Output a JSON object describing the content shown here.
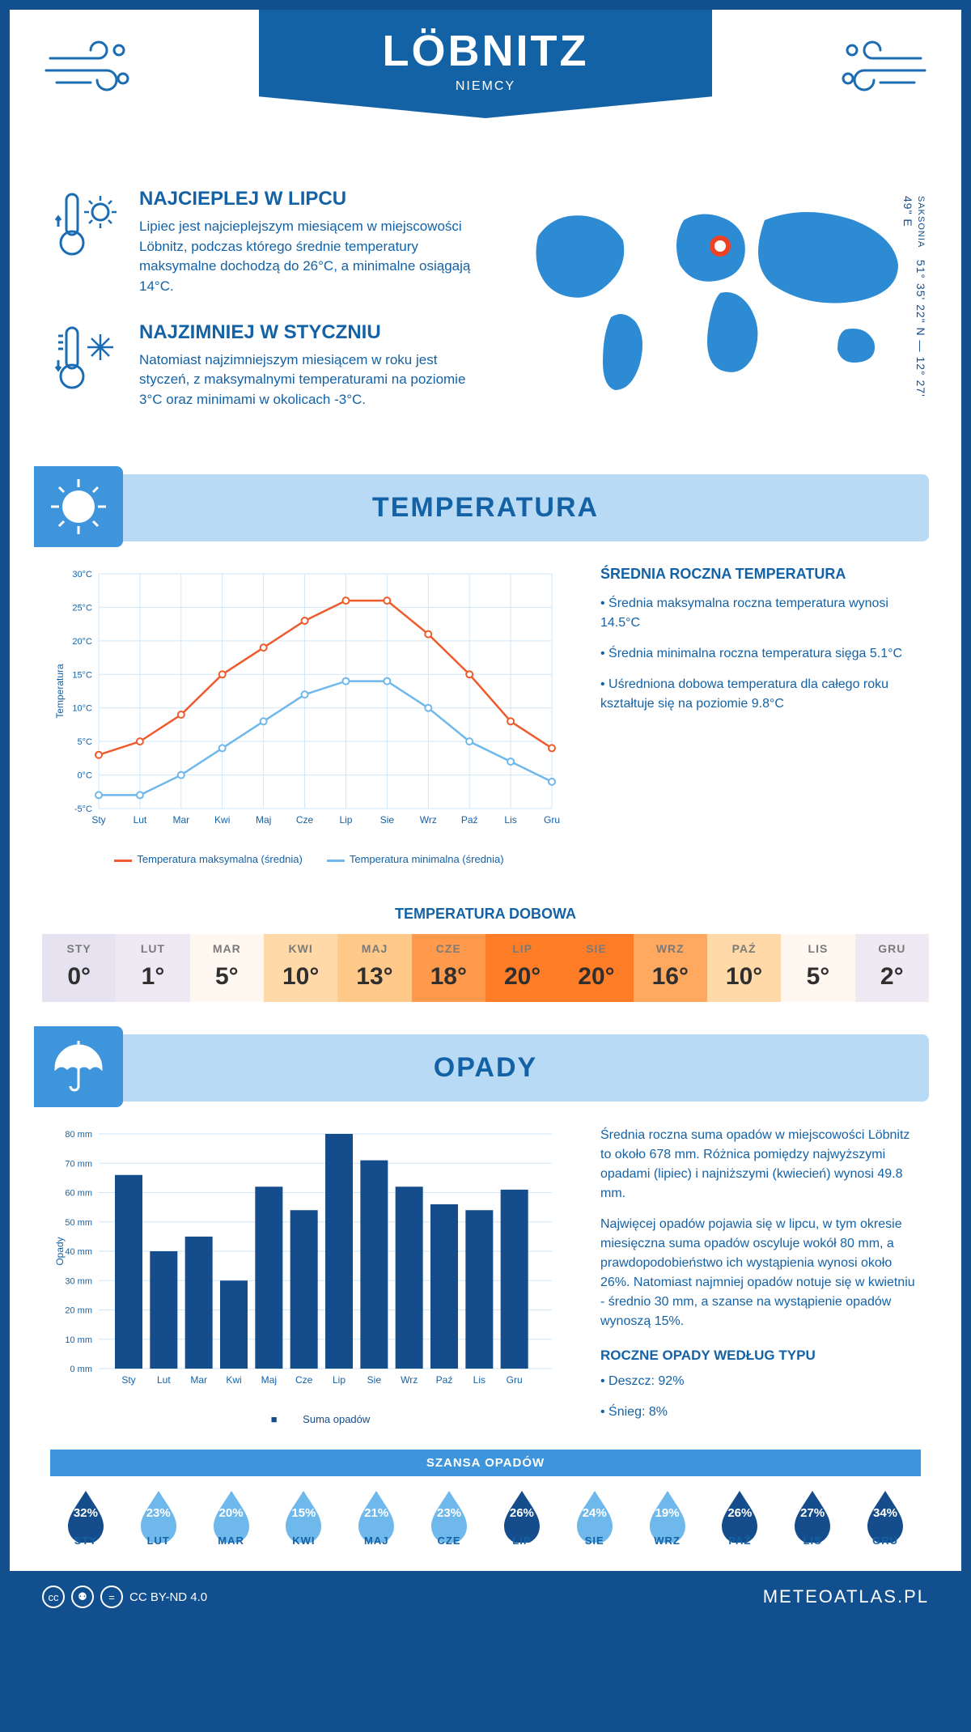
{
  "header": {
    "city": "LÖBNITZ",
    "country": "NIEMCY",
    "coords": "51° 35' 22\" N — 12° 27' 49\" E",
    "region": "SAKSONIA"
  },
  "facts": {
    "hot": {
      "title": "NAJCIEPLEJ W LIPCU",
      "text": "Lipiec jest najcieplejszym miesiącem w miejscowości Löbnitz, podczas którego średnie temperatury maksymalne dochodzą do 26°C, a minimalne osiągają 14°C."
    },
    "cold": {
      "title": "NAJZIMNIEJ W STYCZNIU",
      "text": "Natomiast najzimniejszym miesiącem w roku jest styczeń, z maksymalnymi temperaturami na poziomie 3°C oraz minimami w okolicach -3°C."
    }
  },
  "sections": {
    "temp": "TEMPERATURA",
    "precip": "OPADY"
  },
  "months": [
    "Sty",
    "Lut",
    "Mar",
    "Kwi",
    "Maj",
    "Cze",
    "Lip",
    "Sie",
    "Wrz",
    "Paź",
    "Lis",
    "Gru"
  ],
  "months_upper": [
    "STY",
    "LUT",
    "MAR",
    "KWI",
    "MAJ",
    "CZE",
    "LIP",
    "SIE",
    "WRZ",
    "PAŹ",
    "LIS",
    "GRU"
  ],
  "temp_chart": {
    "type": "line",
    "ylabel": "Temperatura",
    "yticks": [
      -5,
      0,
      5,
      10,
      15,
      20,
      25,
      30
    ],
    "ytick_labels": [
      "-5°C",
      "0°C",
      "5°C",
      "10°C",
      "15°C",
      "20°C",
      "25°C",
      "30°C"
    ],
    "series": {
      "max": {
        "color": "#ef5b2c",
        "label": "Temperatura maksymalna (średnia)",
        "values": [
          3,
          5,
          9,
          15,
          19,
          23,
          26,
          26,
          21,
          15,
          8,
          4
        ]
      },
      "min": {
        "color": "#6fb8ec",
        "label": "Temperatura minimalna (średnia)",
        "values": [
          -3,
          -3,
          0,
          4,
          8,
          12,
          14,
          14,
          10,
          5,
          2,
          -1
        ]
      }
    },
    "grid_color": "#cfe7f8",
    "background": "#ffffff"
  },
  "temp_side": {
    "title": "ŚREDNIA ROCZNA TEMPERATURA",
    "b1": "• Średnia maksymalna roczna temperatura wynosi 14.5°C",
    "b2": "• Średnia minimalna roczna temperatura sięga 5.1°C",
    "b3": "• Uśredniona dobowa temperatura dla całego roku kształtuje się na poziomie 9.8°C"
  },
  "daily": {
    "title": "TEMPERATURA DOBOWA",
    "values": [
      "0°",
      "1°",
      "5°",
      "10°",
      "13°",
      "18°",
      "20°",
      "20°",
      "16°",
      "10°",
      "5°",
      "2°"
    ],
    "colors": [
      "#e6e2f0",
      "#eee9f3",
      "#fff8f0",
      "#ffd9a8",
      "#ffc98a",
      "#ff9a4d",
      "#ff7d26",
      "#ff7d26",
      "#ffa860",
      "#ffd9a8",
      "#fff8f0",
      "#eee9f3"
    ]
  },
  "precip_chart": {
    "type": "bar",
    "ylabel": "Opady",
    "ymax": 80,
    "ytick_step": 10,
    "ytick_labels": [
      "0 mm",
      "10 mm",
      "20 mm",
      "30 mm",
      "40 mm",
      "50 mm",
      "60 mm",
      "70 mm",
      "80 mm"
    ],
    "bar_color": "#154c8b",
    "grid_color": "#cfe7f8",
    "values": [
      66,
      40,
      45,
      30,
      62,
      54,
      80,
      71,
      62,
      56,
      54,
      61
    ],
    "legend": "Suma opadów"
  },
  "precip_side": {
    "p1": "Średnia roczna suma opadów w miejscowości Löbnitz to około 678 mm. Różnica pomiędzy najwyższymi opadami (lipiec) i najniższymi (kwiecień) wynosi 49.8 mm.",
    "p2": "Najwięcej opadów pojawia się w lipcu, w tym okresie miesięczna suma opadów oscyluje wokół 80 mm, a prawdopodobieństwo ich wystąpienia wynosi około 26%. Natomiast najmniej opadów notuje się w kwietniu - średnio 30 mm, a szanse na wystąpienie opadów wynoszą 15%."
  },
  "chance": {
    "title": "SZANSA OPADÓW",
    "values": [
      32,
      23,
      20,
      15,
      21,
      23,
      26,
      24,
      19,
      26,
      27,
      34
    ],
    "dark": "#154c8b",
    "light": "#6fb8ec"
  },
  "precip_type": {
    "title": "ROCZNE OPADY WEDŁUG TYPU",
    "rain": "• Deszcz: 92%",
    "snow": "• Śnieg: 8%"
  },
  "footer": {
    "license": "CC BY-ND 4.0",
    "site": "METEOATLAS.PL"
  }
}
